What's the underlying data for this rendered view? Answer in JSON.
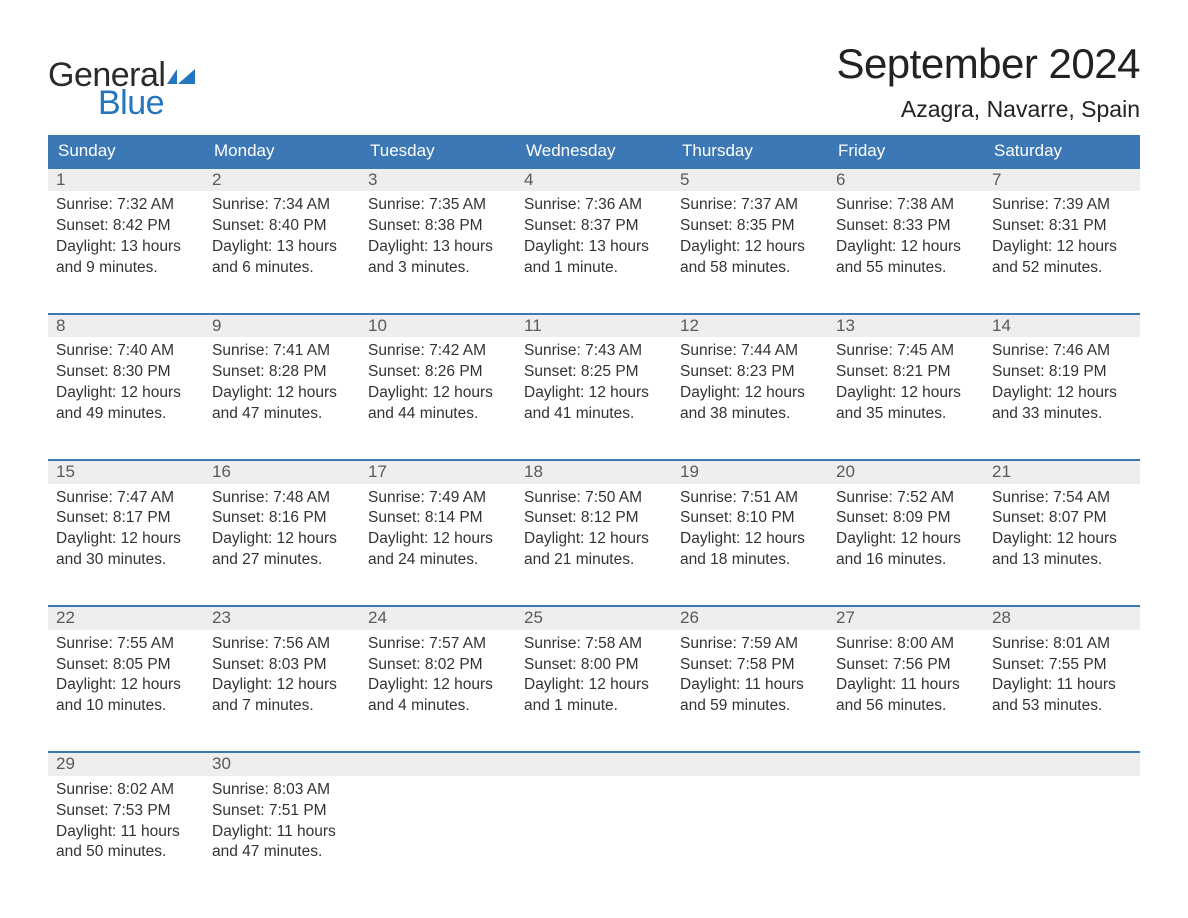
{
  "brand": {
    "word1": "General",
    "word2": "Blue",
    "word1_color": "#2b2b2b",
    "word2_color": "#2376bd",
    "flag_color": "#2376bd",
    "fontsize": 34
  },
  "title": {
    "month": "September 2024",
    "location": "Azagra, Navarre, Spain",
    "month_fontsize": 42,
    "location_fontsize": 23,
    "color": "#222222"
  },
  "calendar": {
    "header_bg": "#3b78b5",
    "header_fg": "#ffffff",
    "daynum_bg": "#eeeeee",
    "daynum_fg": "#5a5a5a",
    "week_border_color": "#3b78b5",
    "body_fontsize": 15.5,
    "days_of_week": [
      "Sunday",
      "Monday",
      "Tuesday",
      "Wednesday",
      "Thursday",
      "Friday",
      "Saturday"
    ],
    "weeks": [
      [
        {
          "n": "1",
          "sunrise": "Sunrise: 7:32 AM",
          "sunset": "Sunset: 8:42 PM",
          "daylight": "Daylight: 13 hours and 9 minutes."
        },
        {
          "n": "2",
          "sunrise": "Sunrise: 7:34 AM",
          "sunset": "Sunset: 8:40 PM",
          "daylight": "Daylight: 13 hours and 6 minutes."
        },
        {
          "n": "3",
          "sunrise": "Sunrise: 7:35 AM",
          "sunset": "Sunset: 8:38 PM",
          "daylight": "Daylight: 13 hours and 3 minutes."
        },
        {
          "n": "4",
          "sunrise": "Sunrise: 7:36 AM",
          "sunset": "Sunset: 8:37 PM",
          "daylight": "Daylight: 13 hours and 1 minute."
        },
        {
          "n": "5",
          "sunrise": "Sunrise: 7:37 AM",
          "sunset": "Sunset: 8:35 PM",
          "daylight": "Daylight: 12 hours and 58 minutes."
        },
        {
          "n": "6",
          "sunrise": "Sunrise: 7:38 AM",
          "sunset": "Sunset: 8:33 PM",
          "daylight": "Daylight: 12 hours and 55 minutes."
        },
        {
          "n": "7",
          "sunrise": "Sunrise: 7:39 AM",
          "sunset": "Sunset: 8:31 PM",
          "daylight": "Daylight: 12 hours and 52 minutes."
        }
      ],
      [
        {
          "n": "8",
          "sunrise": "Sunrise: 7:40 AM",
          "sunset": "Sunset: 8:30 PM",
          "daylight": "Daylight: 12 hours and 49 minutes."
        },
        {
          "n": "9",
          "sunrise": "Sunrise: 7:41 AM",
          "sunset": "Sunset: 8:28 PM",
          "daylight": "Daylight: 12 hours and 47 minutes."
        },
        {
          "n": "10",
          "sunrise": "Sunrise: 7:42 AM",
          "sunset": "Sunset: 8:26 PM",
          "daylight": "Daylight: 12 hours and 44 minutes."
        },
        {
          "n": "11",
          "sunrise": "Sunrise: 7:43 AM",
          "sunset": "Sunset: 8:25 PM",
          "daylight": "Daylight: 12 hours and 41 minutes."
        },
        {
          "n": "12",
          "sunrise": "Sunrise: 7:44 AM",
          "sunset": "Sunset: 8:23 PM",
          "daylight": "Daylight: 12 hours and 38 minutes."
        },
        {
          "n": "13",
          "sunrise": "Sunrise: 7:45 AM",
          "sunset": "Sunset: 8:21 PM",
          "daylight": "Daylight: 12 hours and 35 minutes."
        },
        {
          "n": "14",
          "sunrise": "Sunrise: 7:46 AM",
          "sunset": "Sunset: 8:19 PM",
          "daylight": "Daylight: 12 hours and 33 minutes."
        }
      ],
      [
        {
          "n": "15",
          "sunrise": "Sunrise: 7:47 AM",
          "sunset": "Sunset: 8:17 PM",
          "daylight": "Daylight: 12 hours and 30 minutes."
        },
        {
          "n": "16",
          "sunrise": "Sunrise: 7:48 AM",
          "sunset": "Sunset: 8:16 PM",
          "daylight": "Daylight: 12 hours and 27 minutes."
        },
        {
          "n": "17",
          "sunrise": "Sunrise: 7:49 AM",
          "sunset": "Sunset: 8:14 PM",
          "daylight": "Daylight: 12 hours and 24 minutes."
        },
        {
          "n": "18",
          "sunrise": "Sunrise: 7:50 AM",
          "sunset": "Sunset: 8:12 PM",
          "daylight": "Daylight: 12 hours and 21 minutes."
        },
        {
          "n": "19",
          "sunrise": "Sunrise: 7:51 AM",
          "sunset": "Sunset: 8:10 PM",
          "daylight": "Daylight: 12 hours and 18 minutes."
        },
        {
          "n": "20",
          "sunrise": "Sunrise: 7:52 AM",
          "sunset": "Sunset: 8:09 PM",
          "daylight": "Daylight: 12 hours and 16 minutes."
        },
        {
          "n": "21",
          "sunrise": "Sunrise: 7:54 AM",
          "sunset": "Sunset: 8:07 PM",
          "daylight": "Daylight: 12 hours and 13 minutes."
        }
      ],
      [
        {
          "n": "22",
          "sunrise": "Sunrise: 7:55 AM",
          "sunset": "Sunset: 8:05 PM",
          "daylight": "Daylight: 12 hours and 10 minutes."
        },
        {
          "n": "23",
          "sunrise": "Sunrise: 7:56 AM",
          "sunset": "Sunset: 8:03 PM",
          "daylight": "Daylight: 12 hours and 7 minutes."
        },
        {
          "n": "24",
          "sunrise": "Sunrise: 7:57 AM",
          "sunset": "Sunset: 8:02 PM",
          "daylight": "Daylight: 12 hours and 4 minutes."
        },
        {
          "n": "25",
          "sunrise": "Sunrise: 7:58 AM",
          "sunset": "Sunset: 8:00 PM",
          "daylight": "Daylight: 12 hours and 1 minute."
        },
        {
          "n": "26",
          "sunrise": "Sunrise: 7:59 AM",
          "sunset": "Sunset: 7:58 PM",
          "daylight": "Daylight: 11 hours and 59 minutes."
        },
        {
          "n": "27",
          "sunrise": "Sunrise: 8:00 AM",
          "sunset": "Sunset: 7:56 PM",
          "daylight": "Daylight: 11 hours and 56 minutes."
        },
        {
          "n": "28",
          "sunrise": "Sunrise: 8:01 AM",
          "sunset": "Sunset: 7:55 PM",
          "daylight": "Daylight: 11 hours and 53 minutes."
        }
      ],
      [
        {
          "n": "29",
          "sunrise": "Sunrise: 8:02 AM",
          "sunset": "Sunset: 7:53 PM",
          "daylight": "Daylight: 11 hours and 50 minutes."
        },
        {
          "n": "30",
          "sunrise": "Sunrise: 8:03 AM",
          "sunset": "Sunset: 7:51 PM",
          "daylight": "Daylight: 11 hours and 47 minutes."
        },
        {
          "n": "",
          "sunrise": "",
          "sunset": "",
          "daylight": ""
        },
        {
          "n": "",
          "sunrise": "",
          "sunset": "",
          "daylight": ""
        },
        {
          "n": "",
          "sunrise": "",
          "sunset": "",
          "daylight": ""
        },
        {
          "n": "",
          "sunrise": "",
          "sunset": "",
          "daylight": ""
        },
        {
          "n": "",
          "sunrise": "",
          "sunset": "",
          "daylight": ""
        }
      ]
    ]
  }
}
